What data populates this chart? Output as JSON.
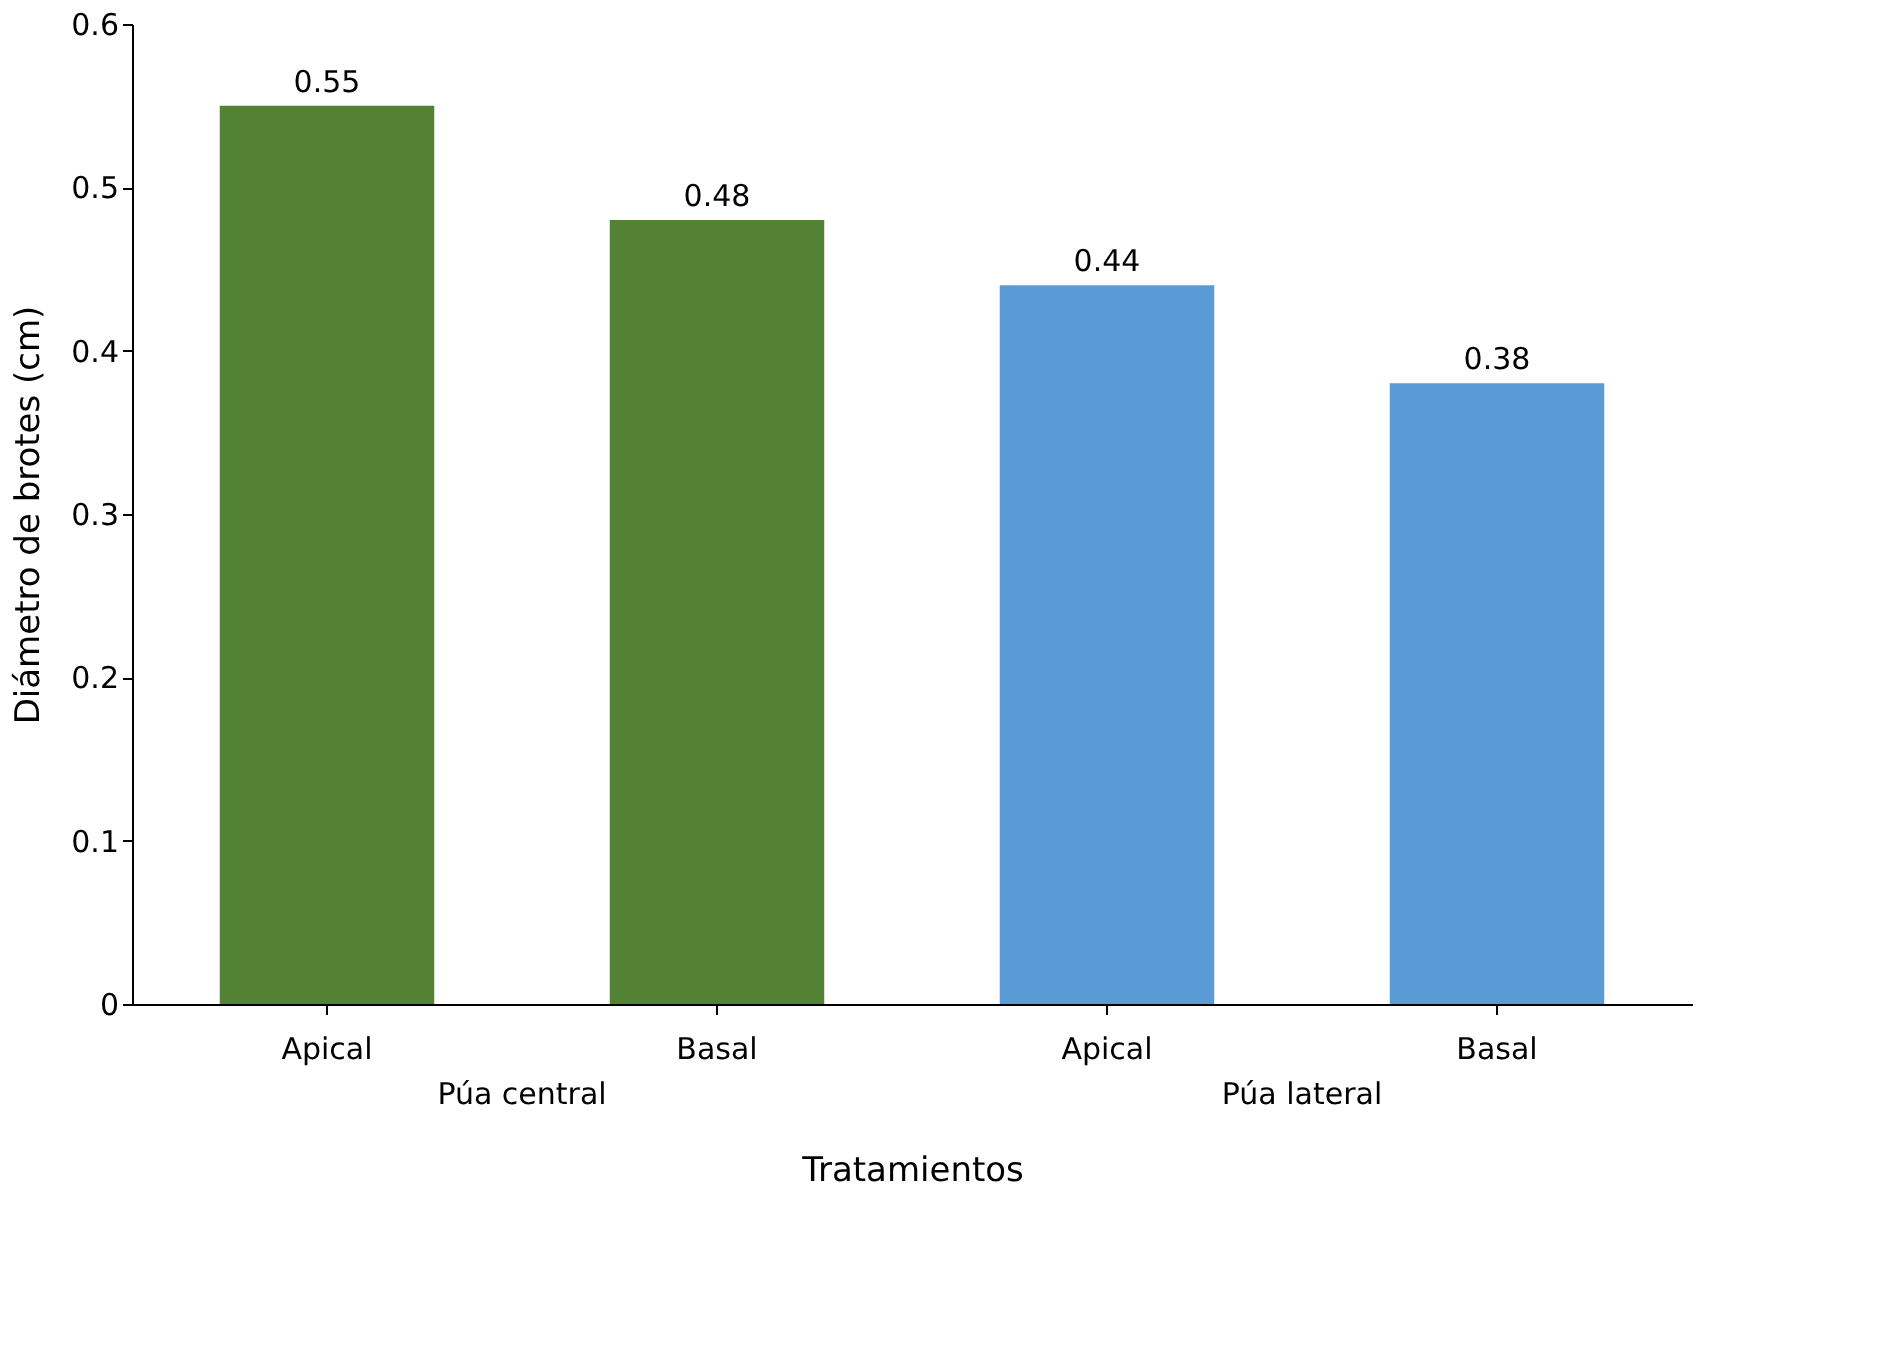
{
  "chart_data": {
    "type": "bar",
    "xlabel": "Tratamientos",
    "ylabel": "Diámetro de brotes (cm)",
    "categories": [
      "Apical",
      "Basal",
      "Apical",
      "Basal"
    ],
    "values": [
      0.55,
      0.48,
      0.44,
      0.38
    ],
    "colors": [
      "#548235",
      "#548235",
      "#5b9bd5",
      "#5b9bd5"
    ],
    "ylim": [
      0,
      0.6
    ],
    "yticks": [
      0,
      0.1,
      0.2,
      0.3,
      0.4,
      0.5,
      0.6
    ],
    "data_labels": true,
    "grid": false,
    "annotations": [
      "Púa central",
      "Púa lateral"
    ]
  }
}
